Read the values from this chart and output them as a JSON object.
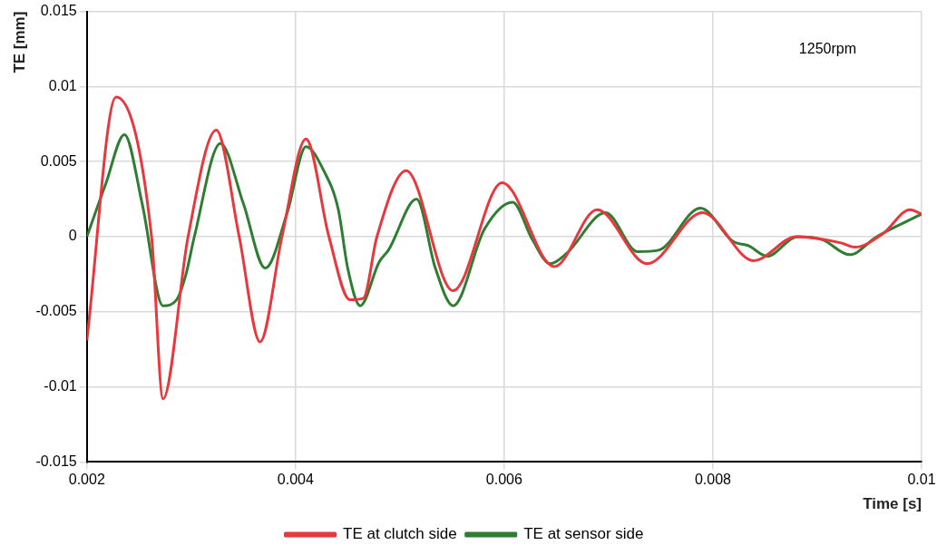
{
  "chart_data": {
    "type": "line",
    "xlabel": "Time [s]",
    "ylabel": "TE [mm]",
    "annotations": [
      "1250rpm"
    ],
    "xlim": [
      0.002,
      0.01
    ],
    "xticks": [
      0.002,
      0.004,
      0.006,
      0.008,
      0.01
    ],
    "ylim": [
      -0.015,
      0.015
    ],
    "yticks": [
      -0.015,
      -0.01,
      -0.005,
      0,
      0.005,
      0.01,
      0.015
    ],
    "grid": true,
    "legend": "bottom",
    "marker": "none",
    "line_style": "solid",
    "series": [
      {
        "name": "TE at clutch side",
        "color": "#e8383d",
        "x": [
          0.002,
          0.00228,
          0.00262,
          0.00273,
          0.00297,
          0.00324,
          0.00346,
          0.00366,
          0.00387,
          0.0041,
          0.00432,
          0.00452,
          0.00465,
          0.00478,
          0.00506,
          0.00551,
          0.00598,
          0.00648,
          0.00689,
          0.00737,
          0.0079,
          0.00839,
          0.0088,
          0.00922,
          0.00936,
          0.00963,
          0.00989,
          0.01
        ],
        "values": [
          -0.0069,
          0.0093,
          0,
          -0.0108,
          0,
          0.0071,
          0,
          -0.007,
          0,
          0.0065,
          0,
          -0.0042,
          -0.0041,
          0,
          0.0044,
          -0.0036,
          0.0036,
          -0.002,
          0.0018,
          -0.0018,
          0.0016,
          -0.0016,
          0,
          -0.0004,
          -0.0007,
          0.0002,
          0.0018,
          0.0015
        ]
      },
      {
        "name": "TE at sensor side",
        "color": "#2e7d32",
        "x": [
          0.002,
          0.00218,
          0.00236,
          0.00253,
          0.00273,
          0.00286,
          0.00295,
          0.00303,
          0.00328,
          0.0035,
          0.00371,
          0.00392,
          0.0041,
          0.00427,
          0.00441,
          0.0045,
          0.00462,
          0.0048,
          0.00489,
          0.00516,
          0.00534,
          0.00551,
          0.00581,
          0.00608,
          0.00627,
          0.00644,
          0.0066,
          0.00697,
          0.00728,
          0.00748,
          0.00788,
          0.00819,
          0.00834,
          0.00852,
          0.00881,
          0.00905,
          0.00931,
          0.00957,
          0.01
        ],
        "values": [
          0,
          0.0035,
          0.0068,
          0.0022,
          -0.0046,
          -0.0042,
          -0.0025,
          0,
          0.0062,
          0.0022,
          -0.0021,
          0.0016,
          0.006,
          0.0044,
          0.0018,
          -0.0021,
          -0.0046,
          -0.0017,
          -0.0009,
          0.0025,
          -0.0021,
          -0.0046,
          0.0005,
          0.0023,
          -0.0002,
          -0.0018,
          -0.0011,
          0.0016,
          -0.001,
          -0.0009,
          0.0019,
          -0.0003,
          -0.0006,
          -0.0013,
          0,
          -0.0002,
          -0.0012,
          0,
          0.0015
        ]
      }
    ]
  }
}
